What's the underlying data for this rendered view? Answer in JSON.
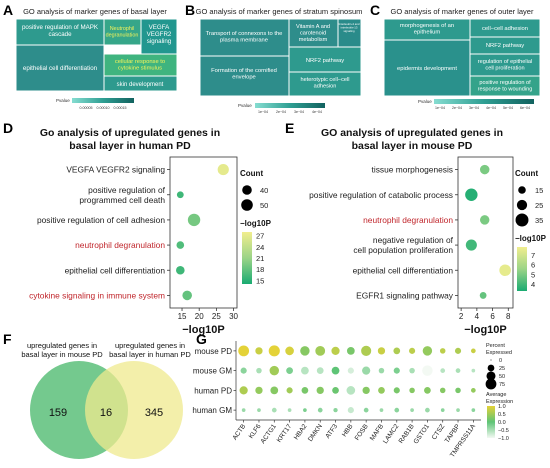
{
  "panels": {
    "A": {
      "letter": "A",
      "title": "GO analysis of marker genes of basal layer",
      "tiles": [
        {
          "label": "positive regulation of MAPK cascade",
          "color": "#2e9a8e",
          "text_color": "#ffffff"
        },
        {
          "label": "Neutrophil degranulation",
          "color": "#36a689",
          "text_color": "#f3f35a"
        },
        {
          "label": "VEGFA VEGFR2 signaling",
          "color": "#22978f",
          "text_color": "#ffffff"
        },
        {
          "label": "epithelial cell differentiation",
          "color": "#2e8d8b",
          "text_color": "#ffffff"
        },
        {
          "label": "cellular response to cytokine stimulus",
          "color": "#3fb47f",
          "text_color": "#f3f35a"
        },
        {
          "label": "skin development",
          "color": "#2e9a8e",
          "text_color": "#ffffff"
        }
      ],
      "legend_label": "Pvalue",
      "legend_ticks": [
        "0.00005",
        "0.00010",
        "0.00015"
      ]
    },
    "B": {
      "letter": "B",
      "title": "GO analysis of marker genes of stratum spinosum",
      "tiles": [
        {
          "label": "Transport of connexons to the plasma membrane",
          "color": "#2e8d8b",
          "text_color": "#ffffff"
        },
        {
          "label": "Vitamin A and carotenoid metabolism",
          "color": "#2e8d8b",
          "text_color": "#ffffff"
        },
        {
          "label": "Interleukin-4 and interleukin-13 signaling",
          "color": "#2a8b8a",
          "text_color": "#ffffff"
        },
        {
          "label": "Formation of the cornified envelope",
          "color": "#2e8d8b",
          "text_color": "#ffffff"
        },
        {
          "label": "NRF2 pathway",
          "color": "#2e9a8e",
          "text_color": "#ffffff"
        },
        {
          "label": "heterotypic cell−cell adhesion",
          "color": "#2e9a8e",
          "text_color": "#ffffff"
        }
      ],
      "legend_label": "Pvalue",
      "legend_ticks": [
        "1e−04",
        "2e−04",
        "3e−04",
        "4e−04"
      ]
    },
    "C": {
      "letter": "C",
      "title": "GO analysis of marker genes of outer layer",
      "tiles": [
        {
          "label": "morphogenesis of an epithelium",
          "color": "#2e9a8e",
          "text_color": "#ffffff"
        },
        {
          "label": "cell−cell adhesion",
          "color": "#2e9a8e",
          "text_color": "#ffffff"
        },
        {
          "label": "epidermis development",
          "color": "#2a918c",
          "text_color": "#ffffff"
        },
        {
          "label": "NRF2 pathway",
          "color": "#2e9a8e",
          "text_color": "#ffffff"
        },
        {
          "label": "regulation of epithelial cell proliferation",
          "color": "#2e9a8e",
          "text_color": "#ffffff"
        },
        {
          "label": "positive regulation of response to wounding",
          "color": "#34a38a",
          "text_color": "#ffffff"
        }
      ],
      "legend_label": "Pvalue",
      "legend_ticks": [
        "1e−04",
        "2e−04",
        "3e−04",
        "4e−04",
        "5e−04",
        "6e−04"
      ]
    },
    "D": {
      "letter": "D",
      "title_lines": [
        "Go analysis of upregulated genes in",
        "basal layer in human PD"
      ]
    },
    "E": {
      "letter": "E",
      "title_lines": [
        "GO analysis of upregulated genes in",
        "basal layer in mouse PD"
      ]
    },
    "F": {
      "letter": "F",
      "left_label_lines": [
        "upregulated genes in",
        "basal layer in mouse PD"
      ],
      "right_label_lines": [
        "upregulated genes in",
        "basal layer in human PD"
      ],
      "left_only": "159",
      "overlap": "16",
      "right_only": "345",
      "left_color": "#5cbf7a",
      "right_color": "#efe98e"
    },
    "G": {
      "letter": "G",
      "size_legend_title_lines": [
        "Percent",
        "Expressed"
      ],
      "size_legend": [
        "0",
        "25",
        "50",
        "75"
      ],
      "color_legend_title_lines": [
        "Average",
        "Expression"
      ],
      "color_legend": [
        "1.0",
        "0.5",
        "0.0",
        "−0.5",
        "−1.0"
      ]
    }
  },
  "colors": {
    "highlight_red": "#c0262c",
    "low_green": "#1aab72",
    "high_yellow": "#f1ee8e"
  },
  "chart_data": [
    {
      "id": "D",
      "type": "scatter",
      "title": "Go analysis of upregulated genes in basal layer in human PD",
      "xlabel": "−log10P",
      "ylabel": "",
      "xlim": [
        11.5,
        31
      ],
      "xticks": [
        15,
        20,
        25,
        30
      ],
      "categories": [
        "VEGFA VEGFR2 signaling",
        "positive regulation of programmed cell death",
        "positive regulation of cell adhesion",
        "neutrophil degranulation",
        "epithelial cell differentiation",
        "cytokine signaling in immune system"
      ],
      "category_label_lines": [
        [
          "VEGFA VEGFR2 signaling"
        ],
        [
          "positive regulation of",
          "programmed cell death"
        ],
        [
          "positive regulation of cell adhesion"
        ],
        [
          "neutrophil degranulation"
        ],
        [
          "epithelial cell differentiation"
        ],
        [
          "cytokine signaling in immune system"
        ]
      ],
      "highlighted": [
        false,
        false,
        false,
        true,
        false,
        true
      ],
      "x": [
        27,
        14.5,
        18.5,
        14.5,
        14.5,
        16.5
      ],
      "count": [
        48,
        26,
        54,
        30,
        35,
        40
      ],
      "color_value": [
        27,
        16,
        19,
        17,
        16,
        18
      ],
      "size_legend_title": "Count",
      "size_legend": [
        40,
        50
      ],
      "color_legend_title": "−log10P",
      "color_legend_ticks": [
        27,
        24,
        21,
        18,
        15
      ],
      "color_range": [
        14,
        28
      ]
    },
    {
      "id": "E",
      "type": "scatter",
      "title": "GO analysis of upregulated genes in basal layer in mouse PD",
      "xlabel": "−log10P",
      "ylabel": "",
      "xlim": [
        1.6,
        8.6
      ],
      "xticks": [
        2,
        4,
        6,
        8
      ],
      "categories": [
        "tissue morphogenesis",
        "positive regulation of catabolic process",
        "neutrophil degranulation",
        "negative regulation of cell population proliferation",
        "epithelial cell differentiation",
        "EGFR1 signaling pathway"
      ],
      "category_label_lines": [
        [
          "tissue morphogenesis"
        ],
        [
          "positive regulation of catabolic process"
        ],
        [
          "neutrophil degranulation"
        ],
        [
          "negative regulation of",
          "cell population proliferation"
        ],
        [
          "epithelial cell differentiation"
        ],
        [
          "EGFR1 signaling pathway"
        ]
      ],
      "highlighted": [
        false,
        false,
        true,
        false,
        false,
        false
      ],
      "x": [
        5.0,
        3.3,
        5.0,
        3.3,
        7.6,
        4.8
      ],
      "count": [
        22,
        33,
        22,
        28,
        30,
        12
      ],
      "color_value": [
        5.0,
        3.5,
        5.0,
        4.0,
        7.5,
        4.6
      ],
      "size_legend_title": "Count",
      "size_legend": [
        15,
        25,
        35
      ],
      "color_legend_title": "−log10P",
      "color_legend_ticks": [
        7,
        6,
        5,
        4
      ],
      "color_range": [
        3.3,
        7.8
      ]
    },
    {
      "id": "G",
      "type": "scatter",
      "title": "",
      "xlabel": "",
      "ylabel": "",
      "genes": [
        "ACTB",
        "KLF6",
        "ACTG1",
        "KRT17",
        "HBA2",
        "DMKN",
        "ATF3",
        "HBB",
        "FOSB",
        "MAFB",
        "LAMC2",
        "RAB1B",
        "GSTO1",
        "CTSZ",
        "TAPBP",
        "TMPRSS11A"
      ],
      "groups": [
        "mouse PD",
        "mouse GM",
        "human PD",
        "human GM"
      ],
      "pct": [
        [
          75,
          30,
          80,
          45,
          55,
          60,
          40,
          35,
          65,
          30,
          25,
          20,
          55,
          15,
          20,
          10
        ],
        [
          20,
          15,
          55,
          25,
          35,
          25,
          35,
          20,
          40,
          15,
          20,
          15,
          70,
          10,
          10,
          5
        ],
        [
          40,
          30,
          35,
          20,
          25,
          30,
          25,
          45,
          30,
          25,
          20,
          15,
          25,
          15,
          15,
          10
        ],
        [
          5,
          5,
          10,
          5,
          5,
          10,
          8,
          20,
          10,
          5,
          10,
          5,
          10,
          5,
          5,
          5
        ]
      ],
      "avg": [
        [
          1.0,
          0.8,
          1.0,
          0.9,
          0.3,
          0.5,
          0.7,
          0.2,
          0.6,
          0.8,
          0.6,
          0.7,
          0.4,
          0.7,
          0.6,
          0.8
        ],
        [
          -0.3,
          -0.5,
          0.5,
          -0.2,
          -0.6,
          -0.6,
          0.0,
          -0.8,
          -0.4,
          -0.4,
          -0.2,
          -0.5,
          -1.0,
          -0.6,
          -0.5,
          -0.6
        ],
        [
          0.6,
          0.4,
          0.3,
          0.5,
          0.2,
          0.3,
          0.1,
          -0.6,
          0.3,
          0.4,
          0.2,
          0.3,
          0.3,
          0.3,
          0.2,
          0.4
        ],
        [
          -0.4,
          -0.4,
          -0.5,
          -0.5,
          -0.2,
          -0.3,
          -0.3,
          -0.7,
          -0.3,
          -0.4,
          -0.3,
          -0.4,
          -0.4,
          -0.3,
          -0.4,
          -0.3
        ]
      ],
      "size_legend_title": "Percent Expressed",
      "size_legend": [
        0,
        25,
        50,
        75
      ],
      "color_legend_title": "Average Expression",
      "color_legend_ticks": [
        1.0,
        0.5,
        0.0,
        -0.5,
        -1.0
      ],
      "color_range": [
        -1.0,
        1.0
      ]
    }
  ]
}
